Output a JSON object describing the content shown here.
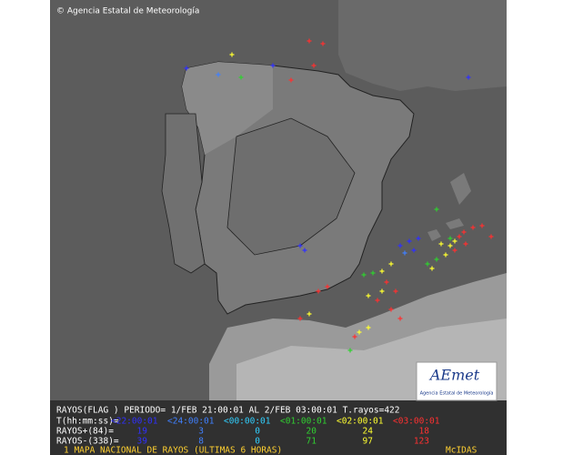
{
  "copyright": "© Agencia Estatal de Meteorología",
  "legend": {
    "header": "RAYOS(FLAG ) PERIODO= 1/FEB 21:00:01 AL  2/FEB 03:00:01  T.rayos=422",
    "time_label": "T(hh:mm:ss)=",
    "times": [
      "<22:00:01",
      "<24:00:01",
      "<00:00:01",
      "<01:00:01",
      "<02:00:01",
      "<03:00:01"
    ],
    "colors": [
      "#3030ff",
      "#4080ff",
      "#30d0ff",
      "#30d030",
      "#ffff30",
      "#ff3030"
    ],
    "positive_label": "RAYOS+(84)=",
    "positive": [
      "19",
      "3",
      "0",
      "20",
      "24",
      "18"
    ],
    "negative_label": "RAYOS-(338)=",
    "negative": [
      "39",
      "8",
      "0",
      "71",
      "97",
      "123"
    ]
  },
  "footer": {
    "title": "1 MAPA NACIONAL DE RAYOS (ULTIMAS 6 HORAS)",
    "source": "McIDAS"
  },
  "logo": {
    "name": "AEmet",
    "subtitle": "Agencia Estatal de Meteorología"
  }
}
